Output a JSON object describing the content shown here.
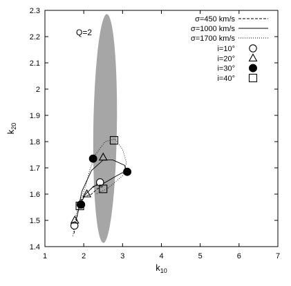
{
  "chart_data": {
    "type": "scatter",
    "annotation": "Q=2",
    "xlabel": "k",
    "xlabel_sub": "10",
    "ylabel": "k",
    "ylabel_sub": "20",
    "xlim": [
      1,
      7
    ],
    "ylim": [
      1.4,
      2.3
    ],
    "xticks": [
      1,
      2,
      3,
      4,
      5,
      6,
      7
    ],
    "yticks": [
      1.4,
      1.5,
      1.6,
      1.7,
      1.8,
      1.9,
      2.0,
      2.1,
      2.2,
      2.3
    ],
    "ytick_labels": [
      "1.4",
      "1.5",
      "1.6",
      "1.7",
      "1.8",
      "1.9",
      "2",
      "2.1",
      "2.2",
      "2.3"
    ],
    "grid": false,
    "legend_position": "top-right",
    "region": {
      "shape": "ellipse",
      "color": "#a6a6a6",
      "center": [
        2.55,
        1.85
      ],
      "semi_major": 0.44,
      "semi_minor": 0.3,
      "angle_deg": 79
    },
    "line_series": [
      {
        "name": "σ=450 km/s",
        "style": "dashed",
        "points": [
          [
            1.75,
            1.45
          ],
          [
            1.85,
            1.53
          ],
          [
            1.9,
            1.57
          ],
          [
            2.0,
            1.59
          ],
          [
            2.2,
            1.6
          ],
          [
            2.35,
            1.62
          ],
          [
            2.5,
            1.63
          ],
          [
            2.45,
            1.65
          ],
          [
            2.35,
            1.64
          ],
          [
            2.2,
            1.62
          ]
        ]
      },
      {
        "name": "σ=1000 km/s",
        "style": "solid",
        "points": [
          [
            1.8,
            1.5
          ],
          [
            1.9,
            1.56
          ],
          [
            2.05,
            1.6
          ],
          [
            2.25,
            1.63
          ],
          [
            2.5,
            1.64
          ],
          [
            2.85,
            1.67
          ],
          [
            3.1,
            1.69
          ],
          [
            3.05,
            1.71
          ],
          [
            2.75,
            1.73
          ],
          [
            2.5,
            1.73
          ],
          [
            2.2,
            1.69
          ],
          [
            1.95,
            1.61
          ],
          [
            1.88,
            1.56
          ]
        ]
      },
      {
        "name": "σ=1700 km/s",
        "style": "dotted",
        "points": [
          [
            1.72,
            1.44
          ],
          [
            1.8,
            1.52
          ],
          [
            1.9,
            1.57
          ],
          [
            2.05,
            1.63
          ],
          [
            2.15,
            1.69
          ],
          [
            2.3,
            1.75
          ],
          [
            2.55,
            1.8
          ],
          [
            2.8,
            1.81
          ],
          [
            3.0,
            1.77
          ],
          [
            3.1,
            1.72
          ],
          [
            3.0,
            1.67
          ],
          [
            2.6,
            1.62
          ],
          [
            2.3,
            1.6
          ]
        ]
      }
    ],
    "marker_series": [
      {
        "name": "i=10°",
        "marker": "circle-open",
        "points": [
          [
            1.76,
            1.48
          ],
          [
            1.92,
            1.56
          ],
          [
            2.42,
            1.645
          ]
        ]
      },
      {
        "name": "i=20°",
        "marker": "triangle-open",
        "points": [
          [
            1.77,
            1.5
          ],
          [
            2.08,
            1.6
          ],
          [
            2.5,
            1.74
          ]
        ]
      },
      {
        "name": "i=30°",
        "marker": "circle-filled",
        "points": [
          [
            1.93,
            1.56
          ],
          [
            2.24,
            1.735
          ],
          [
            3.12,
            1.685
          ]
        ]
      },
      {
        "name": "i=40°",
        "marker": "square-open",
        "points": [
          [
            1.9,
            1.555
          ],
          [
            2.5,
            1.62
          ],
          [
            2.78,
            1.805
          ]
        ]
      }
    ]
  }
}
